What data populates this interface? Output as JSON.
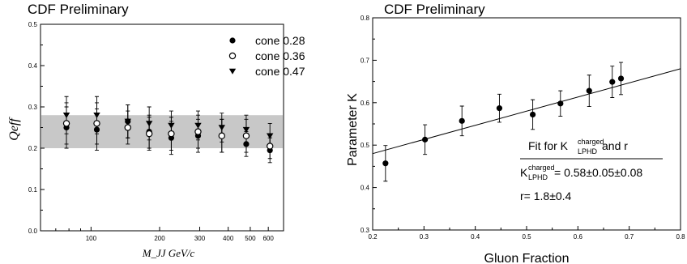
{
  "chart_data": [
    {
      "type": "scatter",
      "title": "CDF Preliminary",
      "xlabel": "M_JJ GeV/c",
      "ylabel": "Qeff",
      "x_scale": "log",
      "xlim": [
        60,
        700
      ],
      "ylim": [
        0.0,
        0.5
      ],
      "x_ticks": [
        "100",
        "200",
        "300",
        "400",
        "500",
        "600"
      ],
      "y_ticks": [
        "0.0",
        "0.1",
        "0.2",
        "0.3",
        "0.4",
        "0.5"
      ],
      "band": {
        "low": 0.2,
        "high": 0.28,
        "color": "#c8c8c8"
      },
      "legend_position": "top-right",
      "series": [
        {
          "name": "cone 0.28",
          "marker": "filled-circle",
          "points": [
            {
              "x": 78,
              "y": 0.25,
              "err": 0.05
            },
            {
              "x": 106,
              "y": 0.245,
              "err": 0.05
            },
            {
              "x": 145,
              "y": 0.265,
              "err": 0.04
            },
            {
              "x": 180,
              "y": 0.24,
              "err": 0.04
            },
            {
              "x": 225,
              "y": 0.225,
              "err": 0.04
            },
            {
              "x": 295,
              "y": 0.23,
              "err": 0.04
            },
            {
              "x": 375,
              "y": 0.23,
              "err": 0.04
            },
            {
              "x": 480,
              "y": 0.21,
              "err": 0.03
            },
            {
              "x": 610,
              "y": 0.195,
              "err": 0.03
            }
          ]
        },
        {
          "name": "cone 0.36",
          "marker": "open-circle",
          "points": [
            {
              "x": 78,
              "y": 0.26,
              "err": 0.05
            },
            {
              "x": 106,
              "y": 0.26,
              "err": 0.05
            },
            {
              "x": 145,
              "y": 0.25,
              "err": 0.04
            },
            {
              "x": 180,
              "y": 0.235,
              "err": 0.04
            },
            {
              "x": 225,
              "y": 0.235,
              "err": 0.04
            },
            {
              "x": 295,
              "y": 0.24,
              "err": 0.04
            },
            {
              "x": 375,
              "y": 0.23,
              "err": 0.04
            },
            {
              "x": 480,
              "y": 0.23,
              "err": 0.04
            },
            {
              "x": 610,
              "y": 0.205,
              "err": 0.03
            }
          ]
        },
        {
          "name": "cone 0.47",
          "marker": "filled-triangle-down",
          "points": [
            {
              "x": 78,
              "y": 0.28,
              "err": 0.045
            },
            {
              "x": 106,
              "y": 0.28,
              "err": 0.045
            },
            {
              "x": 145,
              "y": 0.265,
              "err": 0.04
            },
            {
              "x": 180,
              "y": 0.26,
              "err": 0.04
            },
            {
              "x": 225,
              "y": 0.255,
              "err": 0.035
            },
            {
              "x": 295,
              "y": 0.255,
              "err": 0.035
            },
            {
              "x": 375,
              "y": 0.25,
              "err": 0.035
            },
            {
              "x": 480,
              "y": 0.245,
              "err": 0.035
            },
            {
              "x": 610,
              "y": 0.23,
              "err": 0.03
            }
          ]
        }
      ]
    },
    {
      "type": "scatter",
      "title": "CDF Preliminary",
      "xlabel": "Gluon Fraction",
      "ylabel": "Parameter K",
      "xlim": [
        0.2,
        0.8
      ],
      "ylim": [
        0.3,
        0.8
      ],
      "x_ticks": [
        "0.2",
        "0.3",
        "0.4",
        "0.5",
        "0.6",
        "0.7",
        "0.8"
      ],
      "y_ticks": [
        "0.3",
        "0.4",
        "0.5",
        "0.6",
        "0.7",
        "0.8"
      ],
      "fit_line": {
        "x": [
          0.2,
          0.8
        ],
        "y": [
          0.48,
          0.68
        ]
      },
      "points": [
        {
          "x": 0.225,
          "y": 0.457,
          "err": 0.042
        },
        {
          "x": 0.302,
          "y": 0.513,
          "err": 0.035
        },
        {
          "x": 0.374,
          "y": 0.557,
          "err": 0.035
        },
        {
          "x": 0.447,
          "y": 0.587,
          "err": 0.033
        },
        {
          "x": 0.512,
          "y": 0.572,
          "err": 0.035
        },
        {
          "x": 0.566,
          "y": 0.598,
          "err": 0.03
        },
        {
          "x": 0.622,
          "y": 0.628,
          "err": 0.037
        },
        {
          "x": 0.667,
          "y": 0.649,
          "err": 0.037
        },
        {
          "x": 0.684,
          "y": 0.657,
          "err": 0.038
        }
      ],
      "annotation": {
        "heading_main": "Fit for K",
        "heading_sup": "charged",
        "heading_sub": "LPHD",
        "heading_tail": "and r",
        "line1_main": "K",
        "line1_sup": "charged",
        "line1_sub": "LPHD",
        "line1_value": "= 0.58±0.05±0.08",
        "line2": "r= 1.8±0.4"
      }
    }
  ]
}
